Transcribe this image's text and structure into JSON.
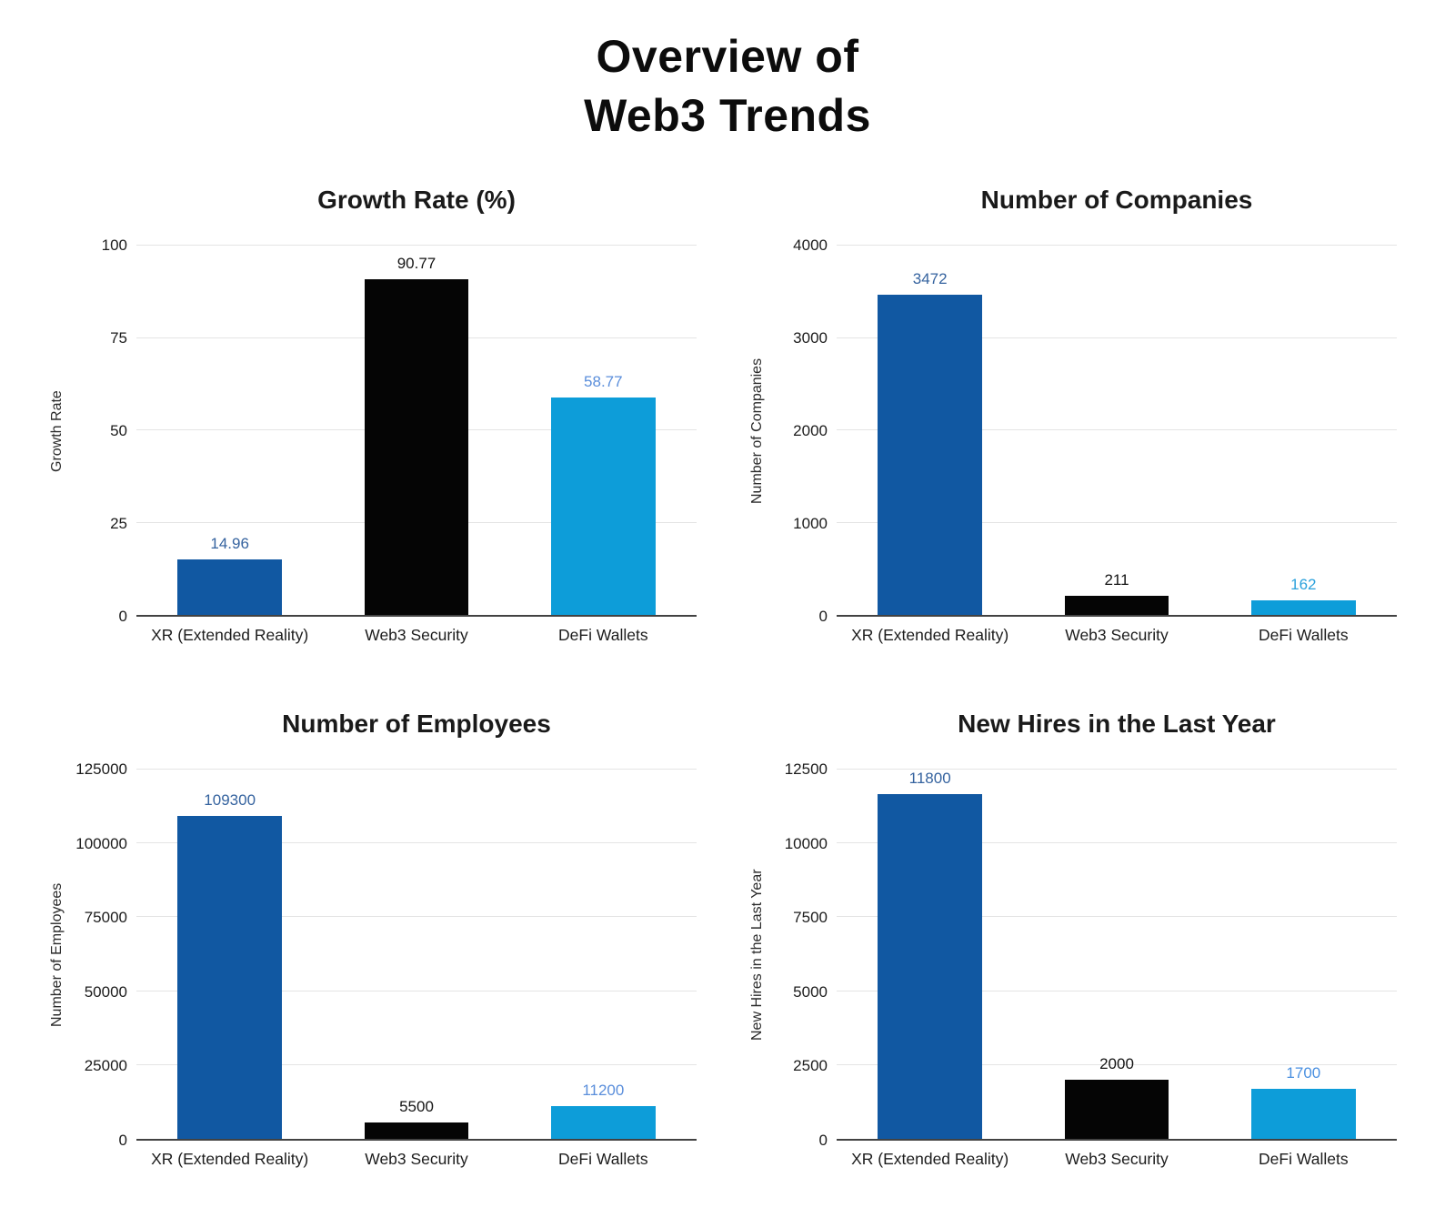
{
  "title": {
    "line1": "Overview of",
    "line2": "Web3 Trends"
  },
  "palette": {
    "dark_blue": "#1158a2",
    "black": "#050505",
    "light_blue": "#0d9dd9",
    "gridline": "#e4e4e4",
    "axis_line": "#424242"
  },
  "chart_data": [
    {
      "type": "bar",
      "title": "Growth Rate (%)",
      "xlabel": "",
      "ylabel": "Growth Rate",
      "categories": [
        "XR (Extended Reality)",
        "Web3 Security",
        "DeFi Wallets"
      ],
      "values": [
        14.96,
        90.77,
        58.77
      ],
      "value_labels": [
        "14.96",
        "90.77",
        "58.77"
      ],
      "yticks": [
        0,
        25,
        50,
        75,
        100
      ],
      "ylim": [
        0,
        100
      ],
      "grid": true,
      "legend": "none",
      "bar_colors": [
        "#1158a2",
        "#050505",
        "#0d9dd9"
      ],
      "label_colors": [
        "#35639f",
        "#141414",
        "#5a8edb"
      ]
    },
    {
      "type": "bar",
      "title": "Number of Companies",
      "xlabel": "",
      "ylabel": "Number of Companies",
      "categories": [
        "XR (Extended Reality)",
        "Web3 Security",
        "DeFi Wallets"
      ],
      "values": [
        3472,
        211,
        162
      ],
      "value_labels": [
        "3472",
        "211",
        "162"
      ],
      "yticks": [
        0,
        1000,
        2000,
        3000,
        4000
      ],
      "ylim": [
        0,
        4000
      ],
      "grid": true,
      "legend": "none",
      "bar_colors": [
        "#1158a2",
        "#050505",
        "#0d9dd9"
      ],
      "label_colors": [
        "#35639f",
        "#141414",
        "#2ba1dc"
      ]
    },
    {
      "type": "bar",
      "title": "Number of Employees",
      "xlabel": "",
      "ylabel": "Number of Employees",
      "categories": [
        "XR (Extended Reality)",
        "Web3 Security",
        "DeFi Wallets"
      ],
      "values": [
        109300,
        5500,
        11200
      ],
      "value_labels": [
        "109300",
        "5500",
        "11200"
      ],
      "yticks": [
        0,
        25000,
        50000,
        75000,
        100000,
        125000
      ],
      "ylim": [
        0,
        125000
      ],
      "grid": true,
      "legend": "none",
      "bar_colors": [
        "#1158a2",
        "#050505",
        "#0d9dd9"
      ],
      "label_colors": [
        "#35639f",
        "#141414",
        "#5a8edb"
      ]
    },
    {
      "type": "bar",
      "title": "New Hires in the Last Year",
      "xlabel": "",
      "ylabel": "New Hires in the Last Year",
      "categories": [
        "XR (Extended Reality)",
        "Web3 Security",
        "DeFi Wallets"
      ],
      "values": [
        11800,
        2000,
        1700
      ],
      "value_labels": [
        "11800",
        "2000",
        "1700"
      ],
      "yticks": [
        0,
        2500,
        5000,
        7500,
        10000,
        12500
      ],
      "ylim": [
        0,
        12500
      ],
      "grid": true,
      "legend": "none",
      "bar_colors": [
        "#1158a2",
        "#050505",
        "#0d9dd9"
      ],
      "label_colors": [
        "#35639f",
        "#141414",
        "#4a90e0"
      ]
    }
  ]
}
